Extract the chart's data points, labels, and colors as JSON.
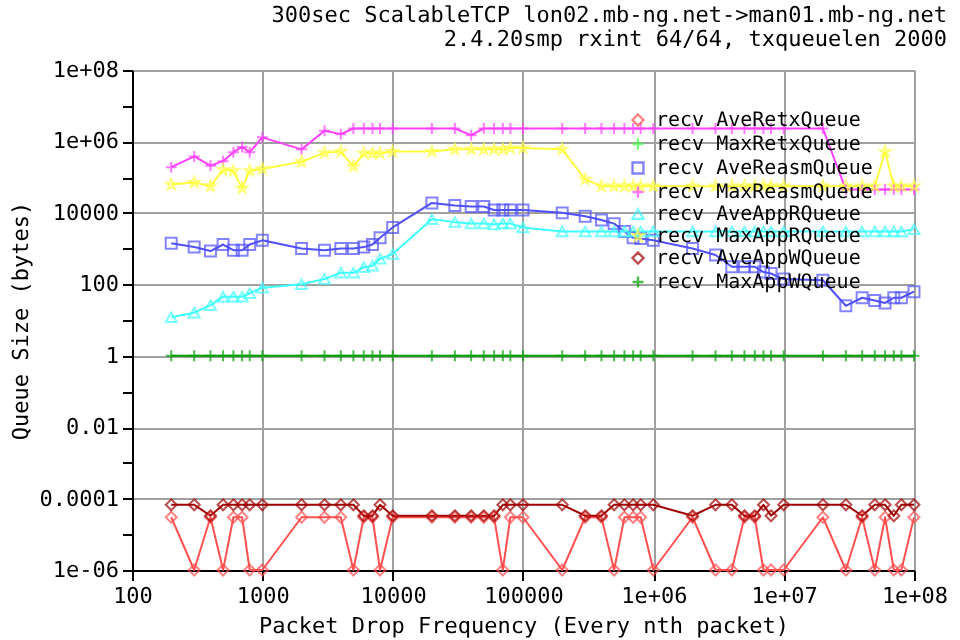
{
  "chart_data": {
    "type": "line",
    "title": "300sec ScalableTCP lon02.mb-ng.net->man01.mb-ng.net",
    "subtitle": "2.4.20smp rxint 64/64, txqueuelen 2000",
    "xlabel": "Packet Drop Frequency (Every nth packet)",
    "ylabel": "Queue Size (bytes)",
    "log": "xy",
    "grid": true,
    "legend": "top right",
    "line_style": "solid",
    "xlim": [
      100,
      100000000
    ],
    "ylim": [
      1e-06,
      100000000
    ],
    "xticks": [
      100,
      1000,
      10000,
      100000,
      {
        "value": 1000000,
        "label": "1e+06"
      },
      {
        "value": 10000000,
        "label": "1e+07"
      },
      {
        "value": 100000000,
        "label": "1e+08"
      }
    ],
    "yticks": [
      {
        "value": 1e-06,
        "label": "1e-06"
      },
      {
        "value": 1e-05,
        "label": null
      },
      0.0001,
      {
        "value": 0.001,
        "label": null
      },
      0.01,
      {
        "value": 0.1,
        "label": null
      },
      1,
      {
        "value": 10,
        "label": null
      },
      100,
      {
        "value": 1000,
        "label": null
      },
      10000,
      {
        "value": 100000,
        "label": null
      },
      {
        "value": 1000000,
        "label": "1e+06"
      },
      {
        "value": 10000000,
        "label": null
      },
      {
        "value": 100000000,
        "label": "1e+08"
      }
    ],
    "x": [
      200,
      300,
      400,
      500,
      600,
      700,
      800,
      1000,
      2000,
      3000,
      4000,
      5000,
      6000,
      7000,
      8000,
      10000,
      20000,
      30000,
      40000,
      50000,
      60000,
      70000,
      80000,
      100000,
      200000,
      300000,
      400000,
      500000,
      600000,
      700000,
      800000,
      1000000,
      2000000,
      3000000,
      4000000,
      5000000,
      6000000,
      7000000,
      8000000,
      10000000,
      20000000,
      30000000,
      40000000,
      50000000,
      60000000,
      70000000,
      80000000,
      100000000
    ],
    "series": [
      {
        "name": "recv AveRetxQueue",
        "color": "#ff5050",
        "marker": "diamond",
        "values": [
          3e-05,
          1e-06,
          3e-05,
          1e-06,
          3e-05,
          3e-05,
          1e-06,
          1e-06,
          3e-05,
          3e-05,
          3e-05,
          1e-06,
          3e-05,
          3e-05,
          1e-06,
          3e-05,
          3e-05,
          3e-05,
          3e-05,
          3e-05,
          3e-05,
          1e-06,
          3e-05,
          3e-05,
          1e-06,
          3e-05,
          3e-05,
          1e-06,
          3e-05,
          3e-05,
          3e-05,
          1e-06,
          3e-05,
          1e-06,
          1e-06,
          3e-05,
          3e-05,
          1e-06,
          1e-06,
          1e-06,
          3e-05,
          1e-06,
          3e-05,
          1e-06,
          3e-05,
          1e-06,
          1e-06,
          3e-05
        ]
      },
      {
        "name": "recv MaxRetxQueue",
        "color": "#40ff40",
        "marker": "cross",
        "values": [
          null,
          null,
          null,
          null,
          null,
          null,
          null,
          null,
          null,
          null,
          null,
          null,
          null,
          null,
          null,
          null,
          null,
          null,
          null,
          null,
          null,
          null,
          null,
          null,
          null,
          null,
          null,
          null,
          null,
          null,
          null,
          null,
          null,
          null,
          null,
          null,
          null,
          null,
          null,
          null,
          null,
          null,
          null,
          null,
          null,
          null,
          null,
          null
        ]
      },
      {
        "name": "recv AveReasmQueue",
        "color": "#5050ff",
        "marker": "square",
        "values": [
          1400,
          1100,
          850,
          1300,
          900,
          900,
          1300,
          1700,
          1000,
          900,
          1000,
          1000,
          1100,
          1300,
          2000,
          3900,
          19000,
          16000,
          15000,
          15000,
          12000,
          12000,
          12000,
          12000,
          10000,
          8000,
          6300,
          5000,
          3000,
          2000,
          1900,
          1700,
          1000,
          660,
          310,
          310,
          310,
          220,
          200,
          140,
          130,
          25,
          42,
          35,
          30,
          42,
          42,
          62
        ]
      },
      {
        "name": "recv MaxReasmQueue",
        "color": "#ff40ff",
        "marker": "cross",
        "values": [
          190000,
          380000,
          210000,
          280000,
          500000,
          700000,
          500000,
          1300000,
          600000,
          2000000,
          1600000,
          2300000,
          2300000,
          2300000,
          2300000,
          2300000,
          2300000,
          2300000,
          1500000,
          2300000,
          2300000,
          2300000,
          2300000,
          2300000,
          2300000,
          2300000,
          2300000,
          2300000,
          2300000,
          2300000,
          2300000,
          2300000,
          2300000,
          2300000,
          2300000,
          2300000,
          2300000,
          2300000,
          2300000,
          2300000,
          2300000,
          45000,
          45000,
          45000,
          45000,
          45000,
          45000,
          45000
        ]
      },
      {
        "name": "recv AveAppRQueue",
        "color": "#40ffff",
        "marker": "triangle",
        "values": [
          12,
          16,
          26,
          45,
          45,
          45,
          56,
          80,
          100,
          140,
          210,
          210,
          300,
          330,
          520,
          700,
          6600,
          5500,
          5000,
          5000,
          4700,
          5000,
          5000,
          3900,
          3000,
          3000,
          3000,
          3000,
          3000,
          3000,
          3000,
          3000,
          3000,
          3000,
          3000,
          3000,
          3000,
          3000,
          3000,
          3000,
          3000,
          3000,
          3000,
          3000,
          3000,
          3000,
          3000,
          3500
        ]
      },
      {
        "name": "recv MaxAppRQueue",
        "color": "#ffff40",
        "marker": "star",
        "values": [
          62000,
          71000,
          56000,
          160000,
          150000,
          49000,
          150000,
          170000,
          270000,
          480000,
          520000,
          200000,
          460000,
          460000,
          460000,
          520000,
          520000,
          600000,
          600000,
          600000,
          600000,
          600000,
          650000,
          650000,
          600000,
          87000,
          56000,
          56000,
          56000,
          56000,
          56000,
          56000,
          56000,
          56000,
          56000,
          56000,
          56000,
          56000,
          56000,
          56000,
          56000,
          56000,
          56000,
          56000,
          520000,
          56000,
          56000,
          56000
        ]
      },
      {
        "name": "recv AveAppWQueue",
        "color": "#a00000",
        "marker": "diamond",
        "values": [
          6.7e-05,
          6.7e-05,
          3.3e-05,
          6.7e-05,
          6.7e-05,
          6.7e-05,
          6.7e-05,
          6.7e-05,
          6.7e-05,
          6.7e-05,
          6.7e-05,
          6.7e-05,
          3.3e-05,
          3.3e-05,
          6.7e-05,
          3.3e-05,
          3.3e-05,
          3.3e-05,
          3.3e-05,
          3.3e-05,
          3.3e-05,
          6.7e-05,
          6.7e-05,
          6.7e-05,
          6.7e-05,
          3.3e-05,
          3.3e-05,
          6.7e-05,
          6.7e-05,
          6.7e-05,
          6.7e-05,
          6.7e-05,
          3.3e-05,
          6.7e-05,
          6.7e-05,
          3.3e-05,
          3.3e-05,
          6.7e-05,
          3.3e-05,
          6.7e-05,
          6.7e-05,
          6.7e-05,
          3.3e-05,
          6.7e-05,
          6.7e-05,
          3.3e-05,
          6.7e-05,
          6.7e-05
        ]
      },
      {
        "name": "recv MaxAppWQueue",
        "color": "#00a000",
        "marker": "cross",
        "values": [
          1,
          1,
          1,
          1,
          1,
          1,
          1,
          1,
          1,
          1,
          1,
          1,
          1,
          1,
          1,
          1,
          1,
          1,
          1,
          1,
          1,
          1,
          1,
          1,
          1,
          1,
          1,
          1,
          1,
          1,
          1,
          1,
          1,
          1,
          1,
          1,
          1,
          1,
          1,
          1,
          1,
          1,
          1,
          1,
          1,
          1,
          1,
          1
        ]
      }
    ]
  }
}
